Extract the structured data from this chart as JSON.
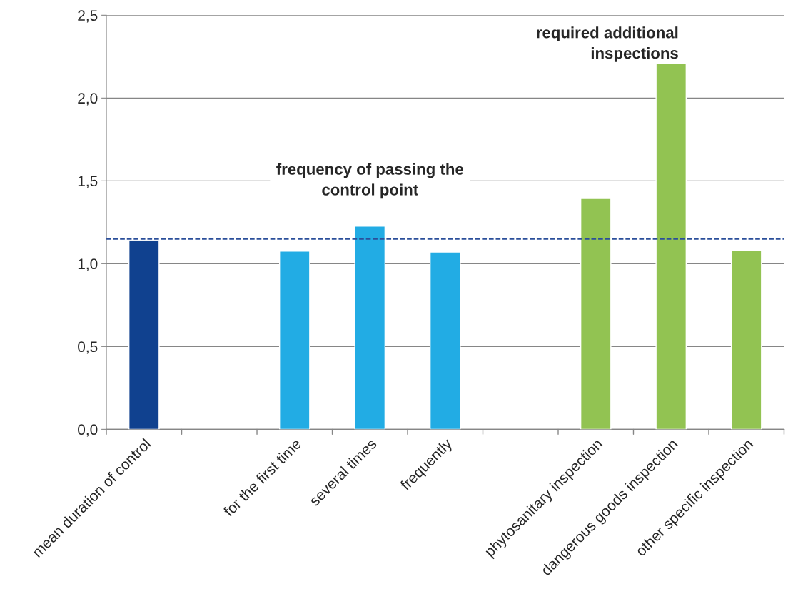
{
  "chart_data": {
    "type": "bar",
    "categories": [
      "mean duration of control",
      null,
      "for the first time",
      "several times",
      "frequently",
      null,
      "phytosanitary inspection",
      "dangerous goods inspection",
      "other specific inspection"
    ],
    "values": [
      1.14,
      null,
      1.076,
      1.226,
      1.07,
      null,
      1.394,
      2.207,
      1.08
    ],
    "colors": [
      "#10418f",
      null,
      "#22ace4",
      "#22ace4",
      "#22ace4",
      null,
      "#92c352",
      "#92c352",
      "#92c352"
    ],
    "ylim": [
      0,
      2.5
    ],
    "yticks": [
      {
        "value": 0,
        "label": "0,0"
      },
      {
        "value": 0.5,
        "label": "0,5"
      },
      {
        "value": 1.0,
        "label": "1,0"
      },
      {
        "value": 1.5,
        "label": "1,5"
      },
      {
        "value": 2.0,
        "label": "2,0"
      },
      {
        "value": 2.5,
        "label": "2,5"
      }
    ],
    "grid": "y",
    "legend": false,
    "ref_lines": [
      {
        "axis": "y",
        "value": 1.149,
        "color": "#2b4f9a",
        "line_style": "dashed"
      }
    ],
    "annotations": [
      "frequency of passing the\ncontrol point",
      "required additional\ninspections"
    ]
  }
}
